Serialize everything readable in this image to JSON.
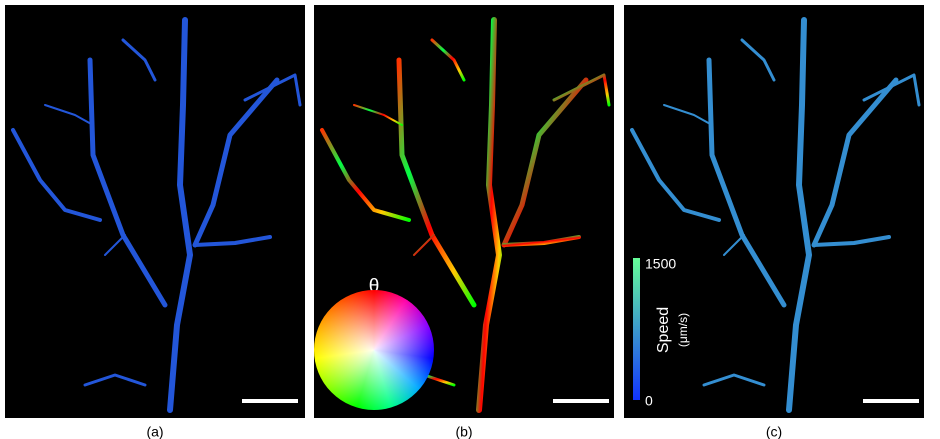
{
  "panels": [
    {
      "label": "(a)"
    },
    {
      "label": "(b)",
      "legend": {
        "symbol": "θ"
      }
    },
    {
      "label": "(c)",
      "colorbar": {
        "title": "Speed",
        "unit": "(μm/s)",
        "max": 1500,
        "min": 0
      }
    }
  ]
}
